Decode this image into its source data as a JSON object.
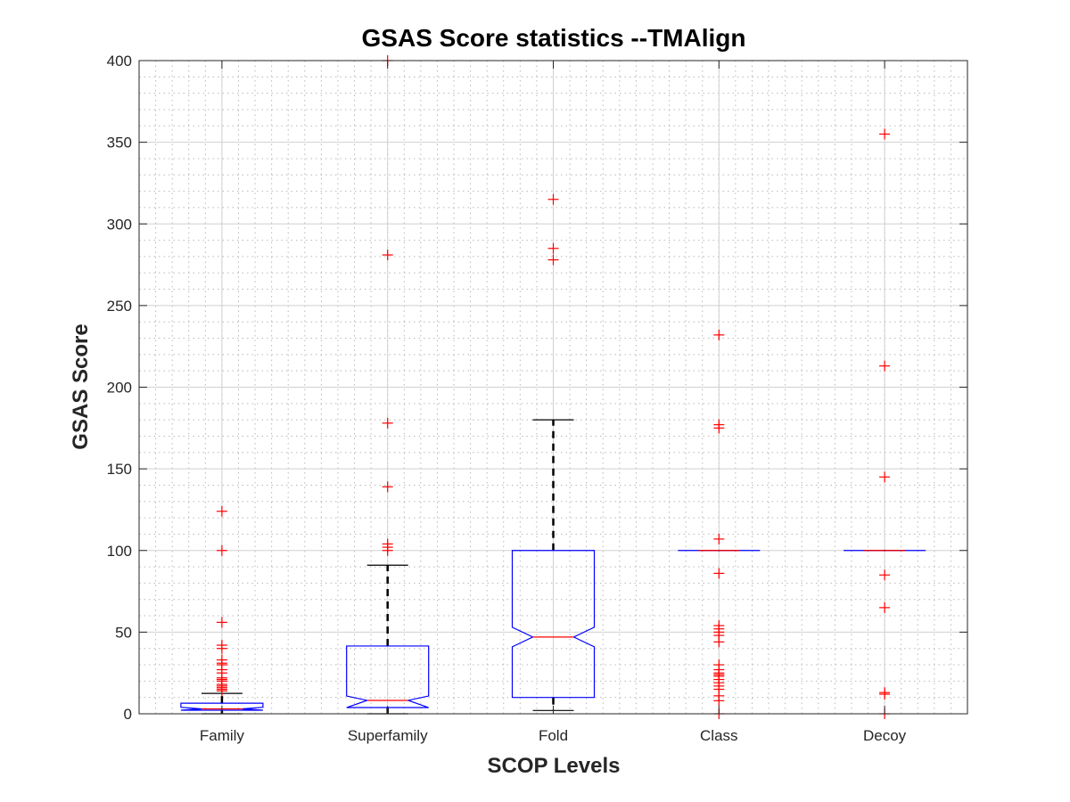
{
  "chart_data": {
    "type": "boxplot",
    "title": "GSAS Score statistics --TMAlign",
    "xlabel": "SCOP Levels",
    "ylabel": "GSAS Score",
    "ylim": [
      0,
      400
    ],
    "yticks": [
      "0",
      "50",
      "100",
      "150",
      "200",
      "250",
      "300",
      "350",
      "400"
    ],
    "grid": "major and minor",
    "categories": [
      "Family",
      "Superfamily",
      "Fold",
      "Class",
      "Decoy"
    ],
    "boxes": [
      {
        "q1": 2.2,
        "median": 3,
        "q3": 6.5,
        "notch_low": 2.2,
        "notch_high": 4,
        "whisker_low": 0,
        "whisker_high": 12.5,
        "outliers": [
          14,
          15,
          16,
          17,
          18,
          20,
          21,
          22,
          25,
          27,
          30,
          31,
          33,
          40,
          42,
          56,
          100,
          124
        ]
      },
      {
        "q1": 3.8,
        "median": 8.2,
        "q3": 41.5,
        "notch_low": 3.8,
        "notch_high": 10.9,
        "whisker_low": 0,
        "whisker_high": 91,
        "outliers": [
          100,
          102,
          104,
          139,
          178,
          281,
          400
        ]
      },
      {
        "q1": 10,
        "median": 47,
        "q3": 100,
        "notch_low": 41,
        "notch_high": 53,
        "whisker_low": 2,
        "whisker_high": 180,
        "outliers": [
          278,
          285,
          315
        ]
      },
      {
        "q1": 100,
        "median": 100,
        "q3": 100,
        "notch_low": 100,
        "notch_high": 100,
        "whisker_low": 100,
        "whisker_high": 100,
        "outliers": [
          0,
          8,
          11,
          15,
          17,
          19,
          21,
          23,
          24,
          25,
          27,
          30,
          44,
          48,
          50,
          52,
          54,
          86,
          107,
          175,
          177,
          232
        ]
      },
      {
        "q1": 100,
        "median": 100,
        "q3": 100,
        "notch_low": 100,
        "notch_high": 100,
        "whisker_low": 100,
        "whisker_high": 100,
        "outliers": [
          0,
          12,
          13,
          65,
          85,
          145,
          213,
          355
        ]
      }
    ],
    "colors": {
      "box": "#0000ff",
      "median": "#ff0000",
      "whisker": "#000000",
      "outlier": "#ff0000",
      "grid": "#d0d0d0"
    }
  }
}
